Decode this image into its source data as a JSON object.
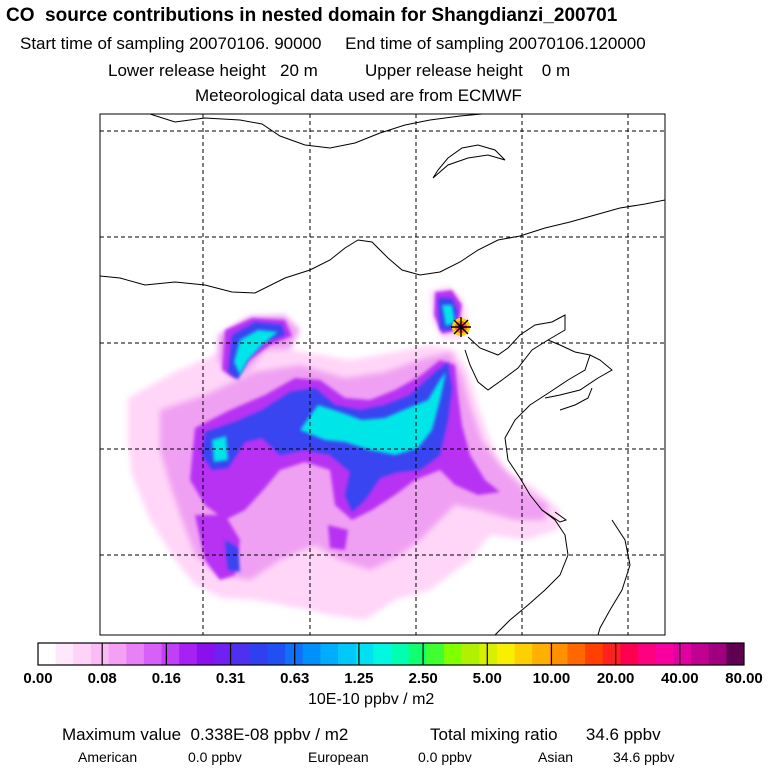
{
  "title": "CO  source contributions in nested domain for Shangdianzi_200701",
  "sampling": {
    "start_label": "Start time of sampling",
    "start_value": "20070106. 90000",
    "end_label": "End time of sampling",
    "end_value": "20070106.120000"
  },
  "release": {
    "lower_label": "Lower release height",
    "lower_value": "20 m",
    "upper_label": "Upper release height",
    "upper_value": "0 m"
  },
  "met_note": "Meteorological data used are from ECMWF",
  "colorbar": {
    "tick_labels": [
      "0.00",
      "0.08",
      "0.16",
      "0.31",
      "0.63",
      "1.25",
      "2.50",
      "5.00",
      "10.00",
      "20.00",
      "40.00",
      "80.00"
    ],
    "units": "10E-10 ppbv / m2",
    "colors": [
      "#ffffff",
      "#ffe8fb",
      "#ffd2f7",
      "#fbbcf6",
      "#f4a0f4",
      "#e880f6",
      "#d860f8",
      "#c040f8",
      "#a820f4",
      "#8a10ee",
      "#7020f0",
      "#5030f0",
      "#3040f0",
      "#2050f4",
      "#1070f8",
      "#0090fc",
      "#00acfc",
      "#00c8f8",
      "#00e0f0",
      "#00f8e0",
      "#00ffb0",
      "#10ff70",
      "#40ff30",
      "#80ff00",
      "#b0f000",
      "#d8f000",
      "#f8f000",
      "#ffd000",
      "#ffb000",
      "#ff9000",
      "#ff6800",
      "#ff4000",
      "#ff2020",
      "#ff0050",
      "#ff0080",
      "#f800a0",
      "#e000a0",
      "#c00090",
      "#a00080",
      "#600050"
    ]
  },
  "stats": {
    "max_label": "Maximum value",
    "max_value": "0.338E-08 ppbv / m2",
    "total_label": "Total mixing ratio",
    "total_value": "34.6 ppbv",
    "american_label": "American",
    "american_value": "0.0 ppbv",
    "european_label": "European",
    "european_value": "0.0 ppbv",
    "asian_label": "Asian",
    "asian_value": "34.6 ppbv"
  },
  "receptor_marker": "star-icon"
}
